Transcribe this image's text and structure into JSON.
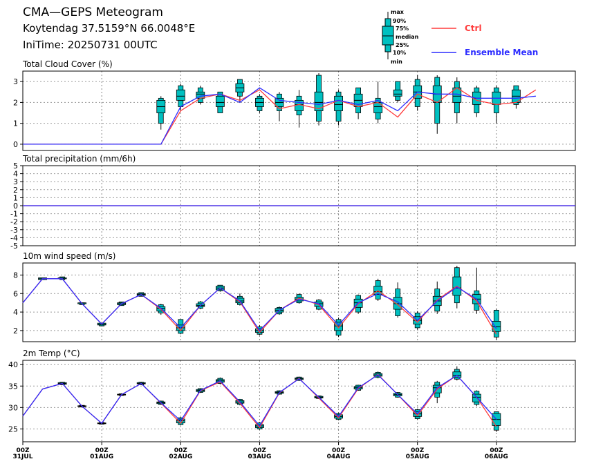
{
  "header": {
    "title": "CMA—GEPS Meteogram",
    "location": "Koytendag 37.5159°N 66.0048°E",
    "init_time": "IniTime: 20250731 00UTC"
  },
  "legend": {
    "box_keys": [
      "max",
      "90%",
      "75%",
      "median",
      "25%",
      "10%",
      "min"
    ],
    "ctrl_label": "Ctrl",
    "mean_label": "Ensemble Mean",
    "ctrl_color": "#ff3b3b",
    "mean_color": "#2b2bff",
    "box_fill": "#00c0c0"
  },
  "chart_data": [
    {
      "type": "box",
      "title": "Total Cloud Cover (%)",
      "ylim": [
        -0.3,
        3.5
      ],
      "yticks": [
        0,
        1,
        2,
        3
      ],
      "xticks": [
        "00Z\n31JUL",
        "00Z\n01AUG",
        "00Z\n02AUG",
        "00Z\n03AUG",
        "00Z\n04AUG",
        "00Z\n05AUG",
        "00Z\n06AUG"
      ],
      "x_hours": [
        0,
        6,
        12,
        18,
        24,
        30,
        36,
        42,
        48,
        54,
        60,
        66,
        72,
        78,
        84,
        90,
        96,
        102,
        108,
        114,
        120,
        126,
        132,
        138,
        144,
        150,
        156,
        162,
        168
      ],
      "ctrl": [
        0,
        0,
        0,
        0,
        0,
        0,
        0,
        0,
        1.6,
        2.2,
        2.4,
        2.1,
        2.6,
        1.7,
        1.9,
        1.7,
        2.1,
        1.8,
        2.0,
        1.3,
        2.4,
        2.0,
        2.7,
        2.1,
        1.9,
        2.0,
        2.6,
        null,
        null
      ],
      "mean": [
        0,
        0,
        0,
        0,
        0,
        0,
        0,
        0,
        1.8,
        2.3,
        2.4,
        2.0,
        2.7,
        2.1,
        2.0,
        1.9,
        2.1,
        1.9,
        2.1,
        1.6,
        2.5,
        2.4,
        2.4,
        2.2,
        2.2,
        2.2,
        2.3,
        null,
        null
      ],
      "boxes": [
        {
          "h": 42,
          "min": 0.7,
          "p10": 1.0,
          "p25": 1.5,
          "med": 1.8,
          "p75": 2.1,
          "p90": 2.2,
          "max": 2.3
        },
        {
          "h": 48,
          "min": 1.6,
          "p10": 1.8,
          "p25": 2.1,
          "med": 2.3,
          "p75": 2.6,
          "p90": 2.8,
          "max": 2.9
        },
        {
          "h": 54,
          "min": 1.9,
          "p10": 2.0,
          "p25": 2.2,
          "med": 2.4,
          "p75": 2.5,
          "p90": 2.7,
          "max": 2.8
        },
        {
          "h": 60,
          "min": 1.5,
          "p10": 1.5,
          "p25": 1.8,
          "med": 2.0,
          "p75": 2.3,
          "p90": 2.5,
          "max": 2.5
        },
        {
          "h": 66,
          "min": 2.0,
          "p10": 2.3,
          "p25": 2.5,
          "med": 2.7,
          "p75": 2.9,
          "p90": 3.1,
          "max": 3.1
        },
        {
          "h": 72,
          "min": 1.5,
          "p10": 1.6,
          "p25": 1.8,
          "med": 2.0,
          "p75": 2.2,
          "p90": 2.3,
          "max": 2.4
        },
        {
          "h": 78,
          "min": 1.1,
          "p10": 1.6,
          "p25": 1.8,
          "med": 2.0,
          "p75": 2.2,
          "p90": 2.4,
          "max": 2.5
        },
        {
          "h": 84,
          "min": 0.8,
          "p10": 1.4,
          "p25": 1.6,
          "med": 1.9,
          "p75": 2.1,
          "p90": 2.3,
          "max": 2.6
        },
        {
          "h": 90,
          "min": 0.9,
          "p10": 1.1,
          "p25": 1.6,
          "med": 2.0,
          "p75": 2.5,
          "p90": 3.3,
          "max": 3.4
        },
        {
          "h": 96,
          "min": 0.9,
          "p10": 1.1,
          "p25": 1.6,
          "med": 1.9,
          "p75": 2.3,
          "p90": 2.5,
          "max": 2.6
        },
        {
          "h": 102,
          "min": 1.2,
          "p10": 1.5,
          "p25": 1.8,
          "med": 2.1,
          "p75": 2.4,
          "p90": 2.7,
          "max": 2.7
        },
        {
          "h": 108,
          "min": 1.0,
          "p10": 1.2,
          "p25": 1.5,
          "med": 1.8,
          "p75": 2.0,
          "p90": 2.2,
          "max": 3.0
        },
        {
          "h": 114,
          "min": 2.0,
          "p10": 2.1,
          "p25": 2.3,
          "med": 2.4,
          "p75": 2.6,
          "p90": 3.0,
          "max": 3.0
        },
        {
          "h": 120,
          "min": 1.6,
          "p10": 1.8,
          "p25": 2.2,
          "med": 2.5,
          "p75": 2.8,
          "p90": 3.1,
          "max": 3.3
        },
        {
          "h": 126,
          "min": 0.5,
          "p10": 1.0,
          "p25": 2.0,
          "med": 2.4,
          "p75": 2.8,
          "p90": 3.2,
          "max": 3.3
        },
        {
          "h": 132,
          "min": 1.0,
          "p10": 1.5,
          "p25": 2.0,
          "med": 2.3,
          "p75": 2.7,
          "p90": 3.0,
          "max": 3.2
        },
        {
          "h": 138,
          "min": 1.3,
          "p10": 1.5,
          "p25": 1.9,
          "med": 2.2,
          "p75": 2.5,
          "p90": 2.7,
          "max": 2.8
        },
        {
          "h": 144,
          "min": 1.0,
          "p10": 1.5,
          "p25": 1.9,
          "med": 2.2,
          "p75": 2.5,
          "p90": 2.7,
          "max": 2.8
        },
        {
          "h": 150,
          "min": 1.7,
          "p10": 1.9,
          "p25": 2.0,
          "med": 2.3,
          "p75": 2.6,
          "p90": 2.8,
          "max": 2.8
        }
      ]
    },
    {
      "type": "line",
      "title": "Total precipitation (mm/6h)",
      "ylim": [
        -5,
        5
      ],
      "yticks": [
        -5,
        -4,
        -3,
        -2,
        -1,
        0,
        1,
        2,
        3,
        4,
        5
      ],
      "ctrl_const": 0,
      "mean_const": 0
    },
    {
      "type": "box",
      "title": "10m wind speed (m/s)",
      "ylim": [
        0.8,
        9.3
      ],
      "yticks": [
        2,
        4,
        6,
        8
      ],
      "ctrl": [
        5.0,
        7.6,
        7.6,
        4.9,
        2.7,
        4.9,
        5.9,
        4.3,
        2.0,
        4.7,
        6.6,
        5.1,
        1.8,
        4.2,
        5.5,
        4.8,
        2.3,
        4.9,
        6.3,
        4.8,
        2.9,
        5.3,
        6.8,
        5.2,
        1.6
      ],
      "mean": [
        5.0,
        7.6,
        7.6,
        4.9,
        2.7,
        4.9,
        5.9,
        4.4,
        2.3,
        4.7,
        6.6,
        5.2,
        2.0,
        4.2,
        5.4,
        4.9,
        2.6,
        5.0,
        6.0,
        5.1,
        3.1,
        5.2,
        6.7,
        5.4,
        2.2
      ],
      "boxes": [
        {
          "h": 6,
          "min": 7.5,
          "p10": 7.5,
          "p25": 7.5,
          "med": 7.6,
          "p75": 7.7,
          "p90": 7.7,
          "max": 7.7
        },
        {
          "h": 12,
          "min": 7.5,
          "p10": 7.5,
          "p25": 7.6,
          "med": 7.6,
          "p75": 7.7,
          "p90": 7.8,
          "max": 7.8
        },
        {
          "h": 18,
          "min": 4.8,
          "p10": 4.8,
          "p25": 4.9,
          "med": 4.9,
          "p75": 5.0,
          "p90": 5.0,
          "max": 5.0
        },
        {
          "h": 24,
          "min": 2.5,
          "p10": 2.5,
          "p25": 2.6,
          "med": 2.7,
          "p75": 2.8,
          "p90": 2.8,
          "max": 2.8
        },
        {
          "h": 30,
          "min": 4.7,
          "p10": 4.7,
          "p25": 4.8,
          "med": 4.9,
          "p75": 5.0,
          "p90": 5.1,
          "max": 5.1
        },
        {
          "h": 36,
          "min": 5.7,
          "p10": 5.7,
          "p25": 5.8,
          "med": 5.9,
          "p75": 6.0,
          "p90": 6.1,
          "max": 6.1
        },
        {
          "h": 42,
          "min": 3.7,
          "p10": 3.9,
          "p25": 4.1,
          "med": 4.4,
          "p75": 4.6,
          "p90": 4.8,
          "max": 4.9
        },
        {
          "h": 48,
          "min": 1.6,
          "p10": 1.7,
          "p25": 2.0,
          "med": 2.3,
          "p75": 2.6,
          "p90": 3.2,
          "max": 3.2
        },
        {
          "h": 54,
          "min": 4.3,
          "p10": 4.4,
          "p25": 4.6,
          "med": 4.7,
          "p75": 4.9,
          "p90": 5.1,
          "max": 5.2
        },
        {
          "h": 60,
          "min": 6.2,
          "p10": 6.3,
          "p25": 6.4,
          "med": 6.6,
          "p75": 6.8,
          "p90": 6.9,
          "max": 6.9
        },
        {
          "h": 66,
          "min": 4.7,
          "p10": 4.8,
          "p25": 5.0,
          "med": 5.2,
          "p75": 5.5,
          "p90": 5.7,
          "max": 6.0
        },
        {
          "h": 72,
          "min": 1.5,
          "p10": 1.6,
          "p25": 1.8,
          "med": 2.0,
          "p75": 2.2,
          "p90": 2.4,
          "max": 2.6
        },
        {
          "h": 78,
          "min": 3.7,
          "p10": 3.8,
          "p25": 4.0,
          "med": 4.2,
          "p75": 4.4,
          "p90": 4.5,
          "max": 4.6
        },
        {
          "h": 84,
          "min": 4.9,
          "p10": 5.0,
          "p25": 5.2,
          "med": 5.4,
          "p75": 5.6,
          "p90": 5.9,
          "max": 6.0
        },
        {
          "h": 90,
          "min": 4.2,
          "p10": 4.3,
          "p25": 4.6,
          "med": 4.9,
          "p75": 5.1,
          "p90": 5.3,
          "max": 5.4
        },
        {
          "h": 96,
          "min": 1.3,
          "p10": 1.5,
          "p25": 2.0,
          "med": 2.5,
          "p75": 2.9,
          "p90": 3.2,
          "max": 3.4
        },
        {
          "h": 102,
          "min": 3.8,
          "p10": 4.0,
          "p25": 4.5,
          "med": 5.0,
          "p75": 5.4,
          "p90": 5.8,
          "max": 5.9
        },
        {
          "h": 108,
          "min": 5.2,
          "p10": 5.4,
          "p25": 5.9,
          "med": 6.2,
          "p75": 6.8,
          "p90": 7.4,
          "max": 7.6
        },
        {
          "h": 114,
          "min": 3.4,
          "p10": 3.6,
          "p25": 4.3,
          "med": 4.9,
          "p75": 5.6,
          "p90": 6.5,
          "max": 7.2
        },
        {
          "h": 120,
          "min": 2.1,
          "p10": 2.3,
          "p25": 2.7,
          "med": 3.1,
          "p75": 3.5,
          "p90": 3.9,
          "max": 4.1
        },
        {
          "h": 126,
          "min": 3.8,
          "p10": 4.1,
          "p25": 4.7,
          "med": 5.2,
          "p75": 5.7,
          "p90": 6.5,
          "max": 7.3
        },
        {
          "h": 132,
          "min": 4.4,
          "p10": 5.0,
          "p25": 5.8,
          "med": 6.6,
          "p75": 7.8,
          "p90": 8.8,
          "max": 9.0
        },
        {
          "h": 138,
          "min": 3.8,
          "p10": 4.2,
          "p25": 4.9,
          "med": 5.4,
          "p75": 5.9,
          "p90": 6.3,
          "max": 8.8
        },
        {
          "h": 144,
          "min": 1.0,
          "p10": 1.3,
          "p25": 1.9,
          "med": 2.4,
          "p75": 3.0,
          "p90": 4.2,
          "max": 4.3
        }
      ]
    },
    {
      "type": "box",
      "title": "2m Temp (°C)",
      "ylim": [
        22,
        41
      ],
      "yticks": [
        25,
        30,
        35,
        40
      ],
      "ctrl": [
        28.0,
        34.3,
        35.6,
        30.3,
        26.3,
        33.0,
        35.6,
        31.0,
        26.3,
        33.9,
        36.0,
        31.0,
        25.3,
        33.4,
        36.8,
        32.2,
        27.6,
        34.4,
        37.7,
        33.0,
        28.1,
        34.3,
        37.5,
        32.4,
        25.5
      ],
      "mean": [
        28.0,
        34.3,
        35.6,
        30.3,
        26.3,
        33.0,
        35.6,
        31.1,
        26.9,
        34.0,
        36.2,
        31.3,
        25.7,
        33.5,
        36.7,
        32.4,
        27.9,
        34.6,
        37.6,
        33.0,
        28.5,
        34.6,
        37.5,
        32.4,
        27.2
      ],
      "boxes": [
        {
          "h": 12,
          "min": 35.3,
          "p10": 35.3,
          "p25": 35.4,
          "med": 35.6,
          "p75": 35.8,
          "p90": 35.9,
          "max": 35.9
        },
        {
          "h": 18,
          "min": 30.1,
          "p10": 30.1,
          "p25": 30.2,
          "med": 30.3,
          "p75": 30.4,
          "p90": 30.5,
          "max": 30.5
        },
        {
          "h": 24,
          "min": 26.1,
          "p10": 26.1,
          "p25": 26.2,
          "med": 26.3,
          "p75": 26.4,
          "p90": 26.5,
          "max": 26.5
        },
        {
          "h": 30,
          "min": 32.7,
          "p10": 32.8,
          "p25": 32.9,
          "med": 33.0,
          "p75": 33.1,
          "p90": 33.2,
          "max": 33.3
        },
        {
          "h": 36,
          "min": 35.2,
          "p10": 35.3,
          "p25": 35.5,
          "med": 35.6,
          "p75": 35.8,
          "p90": 35.9,
          "max": 36.0
        },
        {
          "h": 42,
          "min": 30.6,
          "p10": 30.7,
          "p25": 30.9,
          "med": 31.1,
          "p75": 31.3,
          "p90": 31.5,
          "max": 31.6
        },
        {
          "h": 48,
          "min": 25.8,
          "p10": 26.0,
          "p25": 26.4,
          "med": 26.9,
          "p75": 27.3,
          "p90": 27.6,
          "max": 27.8
        },
        {
          "h": 54,
          "min": 33.4,
          "p10": 33.5,
          "p25": 33.7,
          "med": 34.0,
          "p75": 34.2,
          "p90": 34.4,
          "max": 34.5
        },
        {
          "h": 60,
          "min": 35.4,
          "p10": 35.6,
          "p25": 35.9,
          "med": 36.2,
          "p75": 36.5,
          "p90": 36.8,
          "max": 37.0
        },
        {
          "h": 66,
          "min": 30.5,
          "p10": 30.7,
          "p25": 31.0,
          "med": 31.3,
          "p75": 31.6,
          "p90": 31.9,
          "max": 32.0
        },
        {
          "h": 72,
          "min": 24.8,
          "p10": 25.0,
          "p25": 25.3,
          "med": 25.7,
          "p75": 26.0,
          "p90": 26.4,
          "max": 26.6
        },
        {
          "h": 78,
          "min": 33.0,
          "p10": 33.1,
          "p25": 33.3,
          "med": 33.5,
          "p75": 33.7,
          "p90": 33.9,
          "max": 34.0
        },
        {
          "h": 84,
          "min": 36.2,
          "p10": 36.3,
          "p25": 36.5,
          "med": 36.7,
          "p75": 36.9,
          "p90": 37.1,
          "max": 37.2
        },
        {
          "h": 90,
          "min": 32.0,
          "p10": 32.1,
          "p25": 32.2,
          "med": 32.4,
          "p75": 32.6,
          "p90": 32.7,
          "max": 32.8
        },
        {
          "h": 96,
          "min": 27.0,
          "p10": 27.2,
          "p25": 27.5,
          "med": 27.9,
          "p75": 28.3,
          "p90": 28.6,
          "max": 28.8
        },
        {
          "h": 102,
          "min": 33.9,
          "p10": 34.0,
          "p25": 34.3,
          "med": 34.6,
          "p75": 34.9,
          "p90": 35.2,
          "max": 35.3
        },
        {
          "h": 108,
          "min": 36.8,
          "p10": 37.0,
          "p25": 37.3,
          "med": 37.6,
          "p75": 37.9,
          "p90": 38.2,
          "max": 38.4
        },
        {
          "h": 114,
          "min": 32.3,
          "p10": 32.4,
          "p25": 32.7,
          "med": 33.0,
          "p75": 33.3,
          "p90": 33.5,
          "max": 33.6
        },
        {
          "h": 120,
          "min": 27.2,
          "p10": 27.4,
          "p25": 27.9,
          "med": 28.5,
          "p75": 29.0,
          "p90": 29.5,
          "max": 29.7
        },
        {
          "h": 126,
          "min": 31.0,
          "p10": 32.4,
          "p25": 33.4,
          "med": 34.6,
          "p75": 35.2,
          "p90": 35.9,
          "max": 36.2
        },
        {
          "h": 132,
          "min": 36.3,
          "p10": 36.6,
          "p25": 37.0,
          "med": 37.5,
          "p75": 38.3,
          "p90": 38.9,
          "max": 39.6
        },
        {
          "h": 138,
          "min": 30.3,
          "p10": 30.7,
          "p25": 31.3,
          "med": 32.4,
          "p75": 33.1,
          "p90": 33.8,
          "max": 34.0
        },
        {
          "h": 144,
          "min": 24.3,
          "p10": 24.7,
          "p25": 25.8,
          "med": 27.2,
          "p75": 28.6,
          "p90": 29.0,
          "max": 29.0
        }
      ]
    }
  ]
}
